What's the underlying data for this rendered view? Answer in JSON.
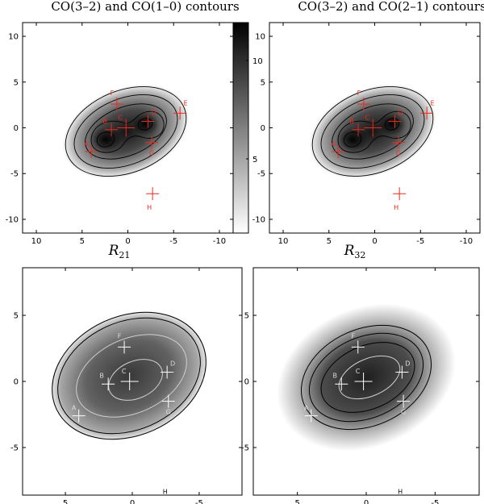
{
  "chart_data": [
    {
      "type": "heatmap",
      "title": "CO(3–2) and CO(1–0) contours",
      "colorbar": {
        "ticks": [
          5,
          10
        ]
      },
      "xlim": [
        11.5,
        -11.5
      ],
      "ylim": [
        -11.5,
        11.5
      ],
      "xticks": [
        10,
        5,
        0,
        -5,
        -10
      ],
      "yticks": [
        10,
        5,
        0,
        -5,
        -10
      ],
      "grid": false,
      "marker_color": "#e8291c",
      "positions": [
        {
          "label": "A",
          "x": 4.0,
          "y": -2.6
        },
        {
          "label": "B",
          "x": 1.8,
          "y": -0.2
        },
        {
          "label": "C",
          "x": 0.2,
          "y": 0.0
        },
        {
          "label": "D",
          "x": -2.2,
          "y": 0.7
        },
        {
          "label": "E",
          "x": -5.7,
          "y": 1.6
        },
        {
          "label": "F",
          "x": 1.2,
          "y": 2.6
        },
        {
          "label": "G",
          "x": -2.6,
          "y": -1.6
        },
        {
          "label": "H",
          "x": -2.7,
          "y": -7.2
        }
      ]
    },
    {
      "type": "heatmap",
      "title": "CO(3–2) and CO(2–1) contours",
      "xlim": [
        11.5,
        -11.5
      ],
      "ylim": [
        -11.5,
        11.5
      ],
      "xticks": [
        10,
        5,
        0,
        -5,
        -10
      ],
      "yticks": [
        10,
        5,
        0,
        -5,
        -10
      ],
      "grid": false,
      "marker_color": "#e8291c",
      "positions": [
        {
          "label": "A",
          "x": 4.0,
          "y": -2.6
        },
        {
          "label": "B",
          "x": 1.8,
          "y": -0.2
        },
        {
          "label": "C",
          "x": 0.2,
          "y": 0.0
        },
        {
          "label": "D",
          "x": -2.2,
          "y": 0.7
        },
        {
          "label": "E",
          "x": -5.7,
          "y": 1.6
        },
        {
          "label": "F",
          "x": 1.2,
          "y": 2.6
        },
        {
          "label": "G",
          "x": -2.6,
          "y": -1.6
        },
        {
          "label": "H",
          "x": -2.7,
          "y": -7.2
        }
      ]
    },
    {
      "type": "heatmap",
      "title": "R21",
      "title_main": "R",
      "title_sub": "21",
      "xlim": [
        8.2,
        -8.2
      ],
      "ylim": [
        -8.6,
        8.6
      ],
      "xticks": [
        5,
        0,
        -5
      ],
      "yticks": [
        5,
        0,
        -5
      ],
      "grid": false,
      "marker_color": "#ffffff",
      "positions": [
        {
          "label": "A",
          "x": 4.0,
          "y": -2.6
        },
        {
          "label": "B",
          "x": 1.8,
          "y": -0.2
        },
        {
          "label": "C",
          "x": 0.2,
          "y": 0.0
        },
        {
          "label": "D",
          "x": -2.6,
          "y": 0.7
        },
        {
          "label": "F",
          "x": 0.6,
          "y": 2.6
        },
        {
          "label": "G",
          "x": -2.7,
          "y": -1.5
        },
        {
          "label": "H",
          "x": -2.7,
          "y": -7.3
        }
      ]
    },
    {
      "type": "heatmap",
      "title": "R32",
      "title_main": "R",
      "title_sub": "32",
      "xlim": [
        8.2,
        -8.2
      ],
      "ylim": [
        -8.6,
        8.6
      ],
      "xticks": [
        5,
        0,
        -5
      ],
      "yticks": [
        5,
        0,
        -5
      ],
      "grid": false,
      "marker_color": "#ffffff",
      "positions": [
        {
          "label": "A",
          "x": 4.0,
          "y": -2.6
        },
        {
          "label": "B",
          "x": 1.8,
          "y": -0.2
        },
        {
          "label": "C",
          "x": 0.2,
          "y": 0.0
        },
        {
          "label": "D",
          "x": -2.6,
          "y": 0.7
        },
        {
          "label": "F",
          "x": 0.6,
          "y": 2.6
        },
        {
          "label": "G",
          "x": -2.7,
          "y": -1.5
        },
        {
          "label": "H",
          "x": -2.7,
          "y": -7.3
        }
      ]
    }
  ]
}
